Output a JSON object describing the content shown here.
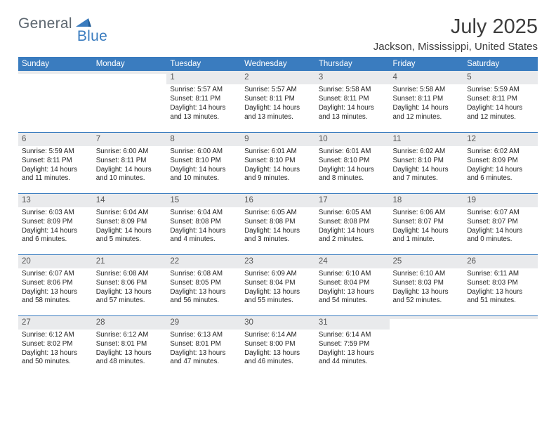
{
  "brand": {
    "part1": "General",
    "part2": "Blue"
  },
  "title": "July 2025",
  "location": "Jackson, Mississippi, United States",
  "colors": {
    "accent": "#3a7cbf",
    "headerRowBg": "#e9eaec",
    "textMuted": "#555555",
    "text": "#222222",
    "logoGray": "#5d6770",
    "bg": "#ffffff"
  },
  "weekdays": [
    "Sunday",
    "Monday",
    "Tuesday",
    "Wednesday",
    "Thursday",
    "Friday",
    "Saturday"
  ],
  "weeks": [
    [
      {
        "n": "",
        "sr": "",
        "ss": "",
        "dl": ""
      },
      {
        "n": "",
        "sr": "",
        "ss": "",
        "dl": ""
      },
      {
        "n": "1",
        "sr": "Sunrise: 5:57 AM",
        "ss": "Sunset: 8:11 PM",
        "dl": "Daylight: 14 hours and 13 minutes."
      },
      {
        "n": "2",
        "sr": "Sunrise: 5:57 AM",
        "ss": "Sunset: 8:11 PM",
        "dl": "Daylight: 14 hours and 13 minutes."
      },
      {
        "n": "3",
        "sr": "Sunrise: 5:58 AM",
        "ss": "Sunset: 8:11 PM",
        "dl": "Daylight: 14 hours and 13 minutes."
      },
      {
        "n": "4",
        "sr": "Sunrise: 5:58 AM",
        "ss": "Sunset: 8:11 PM",
        "dl": "Daylight: 14 hours and 12 minutes."
      },
      {
        "n": "5",
        "sr": "Sunrise: 5:59 AM",
        "ss": "Sunset: 8:11 PM",
        "dl": "Daylight: 14 hours and 12 minutes."
      }
    ],
    [
      {
        "n": "6",
        "sr": "Sunrise: 5:59 AM",
        "ss": "Sunset: 8:11 PM",
        "dl": "Daylight: 14 hours and 11 minutes."
      },
      {
        "n": "7",
        "sr": "Sunrise: 6:00 AM",
        "ss": "Sunset: 8:11 PM",
        "dl": "Daylight: 14 hours and 10 minutes."
      },
      {
        "n": "8",
        "sr": "Sunrise: 6:00 AM",
        "ss": "Sunset: 8:10 PM",
        "dl": "Daylight: 14 hours and 10 minutes."
      },
      {
        "n": "9",
        "sr": "Sunrise: 6:01 AM",
        "ss": "Sunset: 8:10 PM",
        "dl": "Daylight: 14 hours and 9 minutes."
      },
      {
        "n": "10",
        "sr": "Sunrise: 6:01 AM",
        "ss": "Sunset: 8:10 PM",
        "dl": "Daylight: 14 hours and 8 minutes."
      },
      {
        "n": "11",
        "sr": "Sunrise: 6:02 AM",
        "ss": "Sunset: 8:10 PM",
        "dl": "Daylight: 14 hours and 7 minutes."
      },
      {
        "n": "12",
        "sr": "Sunrise: 6:02 AM",
        "ss": "Sunset: 8:09 PM",
        "dl": "Daylight: 14 hours and 6 minutes."
      }
    ],
    [
      {
        "n": "13",
        "sr": "Sunrise: 6:03 AM",
        "ss": "Sunset: 8:09 PM",
        "dl": "Daylight: 14 hours and 6 minutes."
      },
      {
        "n": "14",
        "sr": "Sunrise: 6:04 AM",
        "ss": "Sunset: 8:09 PM",
        "dl": "Daylight: 14 hours and 5 minutes."
      },
      {
        "n": "15",
        "sr": "Sunrise: 6:04 AM",
        "ss": "Sunset: 8:08 PM",
        "dl": "Daylight: 14 hours and 4 minutes."
      },
      {
        "n": "16",
        "sr": "Sunrise: 6:05 AM",
        "ss": "Sunset: 8:08 PM",
        "dl": "Daylight: 14 hours and 3 minutes."
      },
      {
        "n": "17",
        "sr": "Sunrise: 6:05 AM",
        "ss": "Sunset: 8:08 PM",
        "dl": "Daylight: 14 hours and 2 minutes."
      },
      {
        "n": "18",
        "sr": "Sunrise: 6:06 AM",
        "ss": "Sunset: 8:07 PM",
        "dl": "Daylight: 14 hours and 1 minute."
      },
      {
        "n": "19",
        "sr": "Sunrise: 6:07 AM",
        "ss": "Sunset: 8:07 PM",
        "dl": "Daylight: 14 hours and 0 minutes."
      }
    ],
    [
      {
        "n": "20",
        "sr": "Sunrise: 6:07 AM",
        "ss": "Sunset: 8:06 PM",
        "dl": "Daylight: 13 hours and 58 minutes."
      },
      {
        "n": "21",
        "sr": "Sunrise: 6:08 AM",
        "ss": "Sunset: 8:06 PM",
        "dl": "Daylight: 13 hours and 57 minutes."
      },
      {
        "n": "22",
        "sr": "Sunrise: 6:08 AM",
        "ss": "Sunset: 8:05 PM",
        "dl": "Daylight: 13 hours and 56 minutes."
      },
      {
        "n": "23",
        "sr": "Sunrise: 6:09 AM",
        "ss": "Sunset: 8:04 PM",
        "dl": "Daylight: 13 hours and 55 minutes."
      },
      {
        "n": "24",
        "sr": "Sunrise: 6:10 AM",
        "ss": "Sunset: 8:04 PM",
        "dl": "Daylight: 13 hours and 54 minutes."
      },
      {
        "n": "25",
        "sr": "Sunrise: 6:10 AM",
        "ss": "Sunset: 8:03 PM",
        "dl": "Daylight: 13 hours and 52 minutes."
      },
      {
        "n": "26",
        "sr": "Sunrise: 6:11 AM",
        "ss": "Sunset: 8:03 PM",
        "dl": "Daylight: 13 hours and 51 minutes."
      }
    ],
    [
      {
        "n": "27",
        "sr": "Sunrise: 6:12 AM",
        "ss": "Sunset: 8:02 PM",
        "dl": "Daylight: 13 hours and 50 minutes."
      },
      {
        "n": "28",
        "sr": "Sunrise: 6:12 AM",
        "ss": "Sunset: 8:01 PM",
        "dl": "Daylight: 13 hours and 48 minutes."
      },
      {
        "n": "29",
        "sr": "Sunrise: 6:13 AM",
        "ss": "Sunset: 8:01 PM",
        "dl": "Daylight: 13 hours and 47 minutes."
      },
      {
        "n": "30",
        "sr": "Sunrise: 6:14 AM",
        "ss": "Sunset: 8:00 PM",
        "dl": "Daylight: 13 hours and 46 minutes."
      },
      {
        "n": "31",
        "sr": "Sunrise: 6:14 AM",
        "ss": "Sunset: 7:59 PM",
        "dl": "Daylight: 13 hours and 44 minutes."
      },
      {
        "n": "",
        "sr": "",
        "ss": "",
        "dl": ""
      },
      {
        "n": "",
        "sr": "",
        "ss": "",
        "dl": ""
      }
    ]
  ]
}
